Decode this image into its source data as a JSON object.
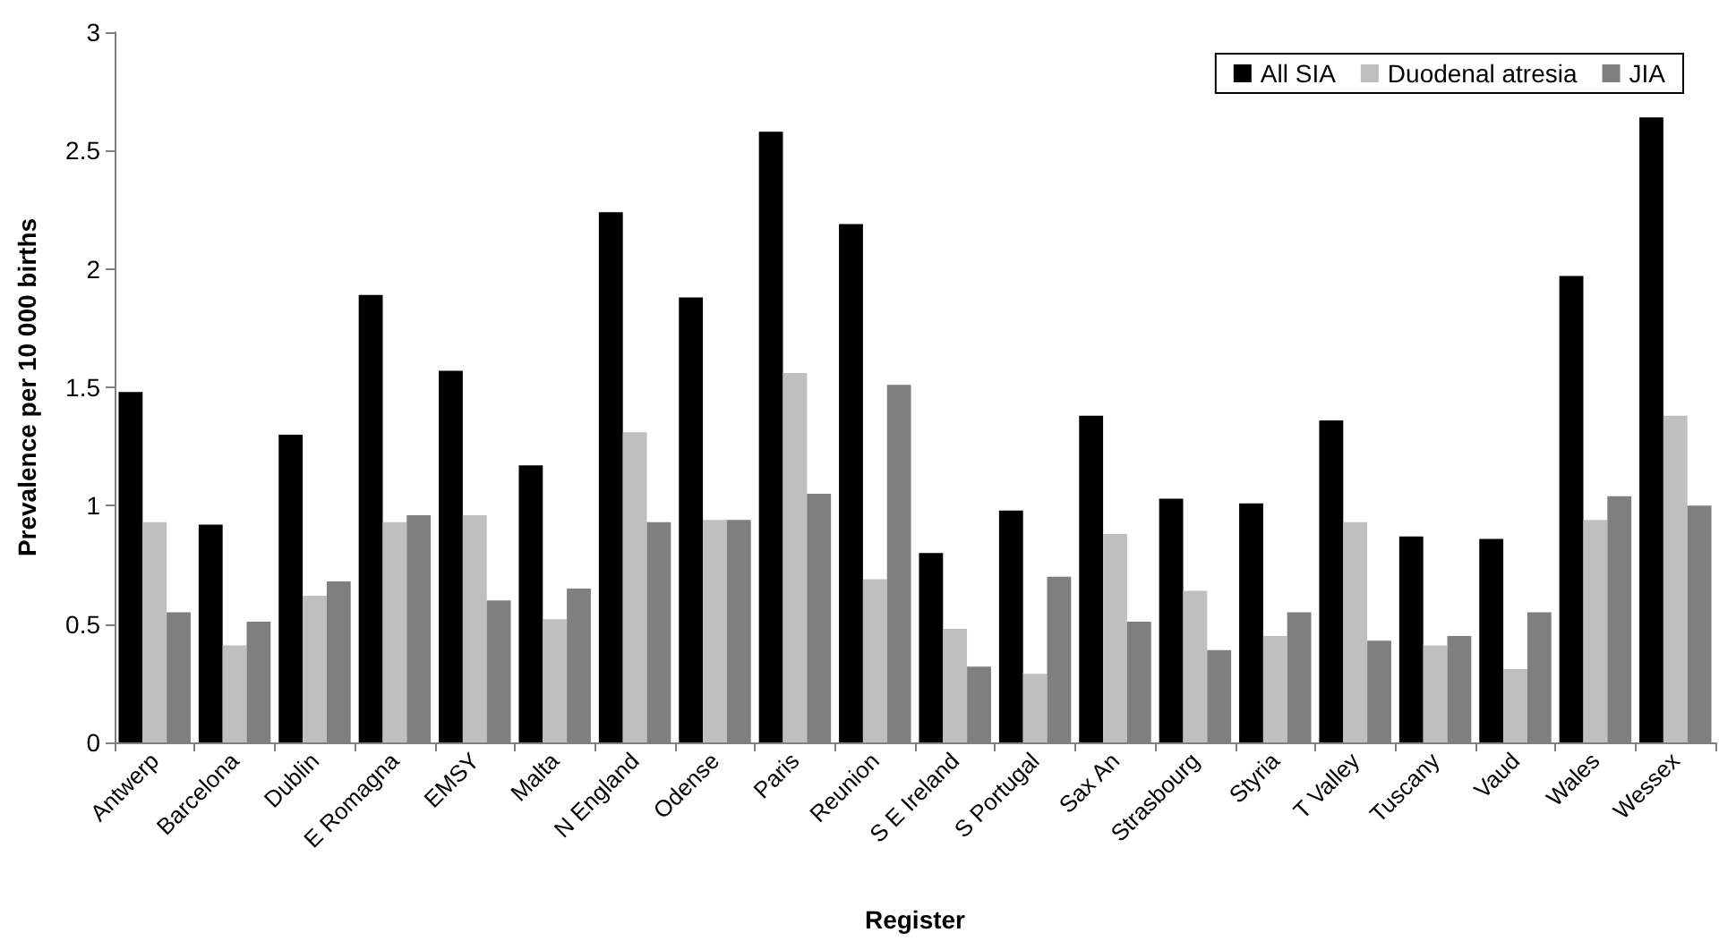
{
  "chart_data": {
    "type": "bar",
    "xlabel": "Register",
    "ylabel": "Prevalence per 10 000 births",
    "categories": [
      "Antwerp",
      "Barcelona",
      "Dublin",
      "E Romagna",
      "EMSY",
      "Malta",
      "N England",
      "Odense",
      "Paris",
      "Reunion",
      "S E Ireland",
      "S Portugal",
      "Sax An",
      "Strasbourg",
      "Styria",
      "T Valley",
      "Tuscany",
      "Vaud",
      "Wales",
      "Wessex"
    ],
    "series": [
      {
        "name": "All SIA",
        "color": "#000000",
        "values": [
          1.48,
          0.92,
          1.3,
          1.89,
          1.57,
          1.17,
          2.24,
          1.88,
          2.58,
          2.19,
          0.8,
          0.98,
          1.38,
          1.03,
          1.01,
          1.36,
          0.87,
          0.86,
          1.97,
          2.64
        ]
      },
      {
        "name": "Duodenal atresia",
        "color": "#bfbfbf",
        "values": [
          0.93,
          0.41,
          0.62,
          0.93,
          0.96,
          0.52,
          1.31,
          0.94,
          1.56,
          0.69,
          0.48,
          0.29,
          0.88,
          0.64,
          0.45,
          0.93,
          0.41,
          0.31,
          0.94,
          1.38
        ]
      },
      {
        "name": "JIA",
        "color": "#7f7f7f",
        "values": [
          0.55,
          0.51,
          0.68,
          0.96,
          0.6,
          0.65,
          0.93,
          0.94,
          1.05,
          1.51,
          0.32,
          0.7,
          0.51,
          0.39,
          0.55,
          0.43,
          0.45,
          0.55,
          1.04,
          1.0
        ]
      }
    ],
    "ylim": [
      0,
      3
    ],
    "yticks": [
      0,
      0.5,
      1,
      1.5,
      2,
      2.5,
      3
    ],
    "grid": false,
    "legend": "top right"
  }
}
